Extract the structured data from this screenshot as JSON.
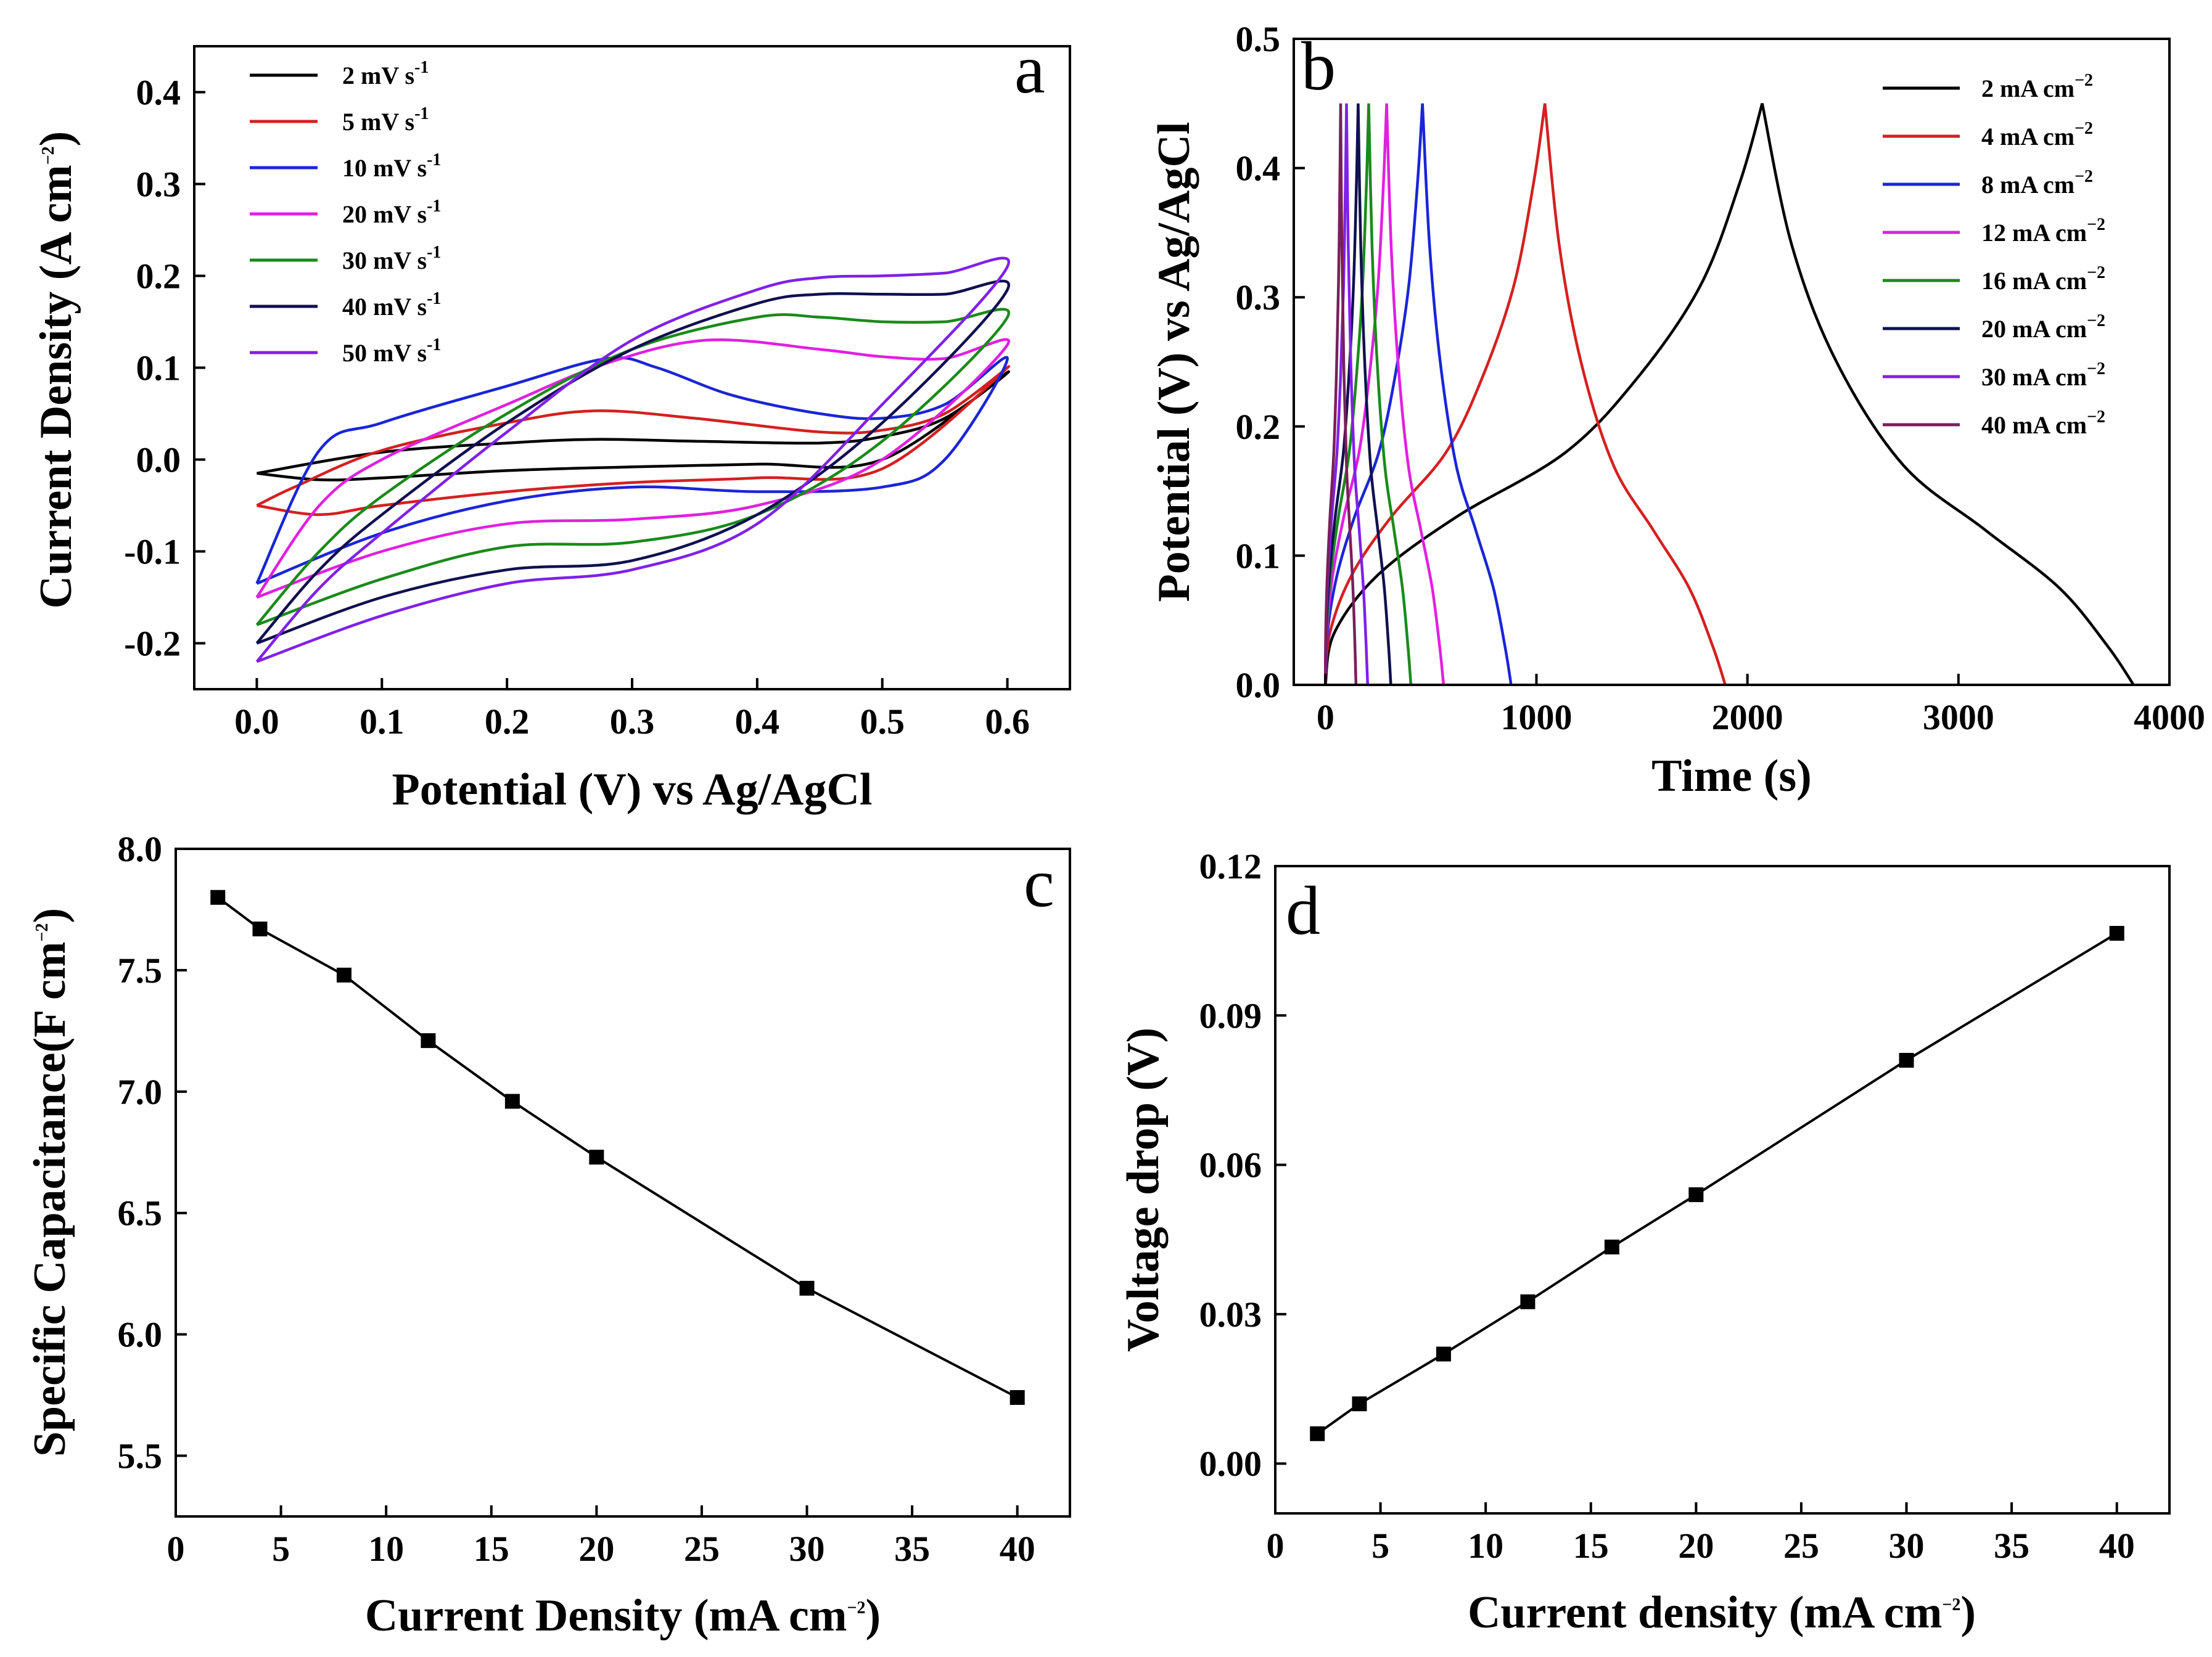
{
  "chart_data": [
    {
      "id": "a",
      "type": "line",
      "panel_label": "a",
      "title": "",
      "xlabel": "Potential (V) vs Ag/AgCl",
      "ylabel": "Current Density (A cm",
      "ylabel_sup": "−2",
      "ylabel_close": ")",
      "xlim": [
        -0.05,
        0.65
      ],
      "ylim": [
        -0.25,
        0.45
      ],
      "xticks": [
        0.0,
        0.1,
        0.2,
        0.3,
        0.4,
        0.5,
        0.6
      ],
      "xtick_labels": [
        "0.0",
        "0.1",
        "0.2",
        "0.3",
        "0.4",
        "0.5",
        "0.6"
      ],
      "yticks": [
        -0.2,
        -0.1,
        0.0,
        0.1,
        0.2,
        0.3,
        0.4
      ],
      "ytick_labels": [
        "-0.2",
        "-0.1",
        "0.0",
        "0.1",
        "0.2",
        "0.3",
        "0.4"
      ],
      "legend_position": "top-left",
      "series": [
        {
          "name": "2",
          "unit": "mV s",
          "sup": "-1",
          "color": "#000000",
          "anodic": [
            [
              0.0,
              -0.015
            ],
            [
              0.1,
              0.008
            ],
            [
              0.2,
              0.018
            ],
            [
              0.27,
              0.022
            ],
            [
              0.35,
              0.02
            ],
            [
              0.45,
              0.018
            ],
            [
              0.5,
              0.025
            ],
            [
              0.55,
              0.045
            ],
            [
              0.6,
              0.095
            ]
          ],
          "cathodic": [
            [
              0.6,
              0.095
            ],
            [
              0.5,
              0.0
            ],
            [
              0.4,
              -0.005
            ],
            [
              0.3,
              -0.008
            ],
            [
              0.2,
              -0.012
            ],
            [
              0.1,
              -0.02
            ],
            [
              0.05,
              -0.022
            ],
            [
              0.0,
              -0.015
            ]
          ]
        },
        {
          "name": "5",
          "unit": "mV s",
          "sup": "-1",
          "color": "#d42020",
          "anodic": [
            [
              0.0,
              -0.05
            ],
            [
              0.03,
              -0.03
            ],
            [
              0.1,
              0.01
            ],
            [
              0.2,
              0.04
            ],
            [
              0.27,
              0.053
            ],
            [
              0.35,
              0.045
            ],
            [
              0.45,
              0.03
            ],
            [
              0.5,
              0.032
            ],
            [
              0.55,
              0.05
            ],
            [
              0.6,
              0.1
            ]
          ],
          "cathodic": [
            [
              0.6,
              0.1
            ],
            [
              0.5,
              -0.01
            ],
            [
              0.4,
              -0.02
            ],
            [
              0.3,
              -0.025
            ],
            [
              0.2,
              -0.035
            ],
            [
              0.1,
              -0.05
            ],
            [
              0.05,
              -0.06
            ],
            [
              0.0,
              -0.05
            ]
          ]
        },
        {
          "name": "10",
          "unit": "mV s",
          "sup": "-1",
          "color": "#1a25d6",
          "anodic": [
            [
              0.0,
              -0.135
            ],
            [
              0.05,
              0.01
            ],
            [
              0.1,
              0.04
            ],
            [
              0.2,
              0.08
            ],
            [
              0.28,
              0.11
            ],
            [
              0.32,
              0.1
            ],
            [
              0.38,
              0.07
            ],
            [
              0.45,
              0.05
            ],
            [
              0.5,
              0.045
            ],
            [
              0.55,
              0.06
            ],
            [
              0.6,
              0.11
            ]
          ],
          "cathodic": [
            [
              0.6,
              0.11
            ],
            [
              0.55,
              0.0
            ],
            [
              0.5,
              -0.03
            ],
            [
              0.4,
              -0.035
            ],
            [
              0.3,
              -0.03
            ],
            [
              0.2,
              -0.045
            ],
            [
              0.1,
              -0.08
            ],
            [
              0.0,
              -0.135
            ]
          ]
        },
        {
          "name": "20",
          "unit": "mV s",
          "sup": "-1",
          "color": "#e020e0",
          "anodic": [
            [
              0.0,
              -0.15
            ],
            [
              0.05,
              -0.05
            ],
            [
              0.1,
              0.0
            ],
            [
              0.2,
              0.06
            ],
            [
              0.28,
              0.105
            ],
            [
              0.36,
              0.13
            ],
            [
              0.45,
              0.12
            ],
            [
              0.5,
              0.112
            ],
            [
              0.55,
              0.11
            ],
            [
              0.6,
              0.125
            ]
          ],
          "cathodic": [
            [
              0.6,
              0.125
            ],
            [
              0.5,
              0.0
            ],
            [
              0.4,
              -0.05
            ],
            [
              0.3,
              -0.065
            ],
            [
              0.2,
              -0.07
            ],
            [
              0.1,
              -0.1
            ],
            [
              0.0,
              -0.15
            ]
          ]
        },
        {
          "name": "30",
          "unit": "mV s",
          "sup": "-1",
          "color": "#1a8a1a",
          "anodic": [
            [
              0.0,
              -0.18
            ],
            [
              0.05,
              -0.1
            ],
            [
              0.1,
              -0.04
            ],
            [
              0.2,
              0.05
            ],
            [
              0.3,
              0.12
            ],
            [
              0.4,
              0.155
            ],
            [
              0.45,
              0.155
            ],
            [
              0.5,
              0.15
            ],
            [
              0.55,
              0.15
            ],
            [
              0.6,
              0.155
            ]
          ],
          "cathodic": [
            [
              0.6,
              0.155
            ],
            [
              0.5,
              0.02
            ],
            [
              0.4,
              -0.06
            ],
            [
              0.3,
              -0.09
            ],
            [
              0.2,
              -0.095
            ],
            [
              0.1,
              -0.13
            ],
            [
              0.0,
              -0.18
            ]
          ]
        },
        {
          "name": "40",
          "unit": "mV s",
          "sup": "-1",
          "color": "#101050",
          "anodic": [
            [
              0.0,
              -0.2
            ],
            [
              0.05,
              -0.12
            ],
            [
              0.1,
              -0.06
            ],
            [
              0.2,
              0.04
            ],
            [
              0.3,
              0.12
            ],
            [
              0.4,
              0.17
            ],
            [
              0.45,
              0.18
            ],
            [
              0.5,
              0.18
            ],
            [
              0.55,
              0.18
            ],
            [
              0.6,
              0.185
            ]
          ],
          "cathodic": [
            [
              0.6,
              0.185
            ],
            [
              0.5,
              0.04
            ],
            [
              0.4,
              -0.06
            ],
            [
              0.3,
              -0.11
            ],
            [
              0.2,
              -0.12
            ],
            [
              0.1,
              -0.15
            ],
            [
              0.0,
              -0.2
            ]
          ]
        },
        {
          "name": "50",
          "unit": "mV s",
          "sup": "-1",
          "color": "#8020e8",
          "anodic": [
            [
              0.0,
              -0.22
            ],
            [
              0.05,
              -0.14
            ],
            [
              0.1,
              -0.08
            ],
            [
              0.2,
              0.03
            ],
            [
              0.3,
              0.13
            ],
            [
              0.4,
              0.185
            ],
            [
              0.45,
              0.198
            ],
            [
              0.5,
              0.2
            ],
            [
              0.55,
              0.203
            ],
            [
              0.6,
              0.21
            ]
          ],
          "cathodic": [
            [
              0.6,
              0.21
            ],
            [
              0.5,
              0.06
            ],
            [
              0.4,
              -0.07
            ],
            [
              0.3,
              -0.12
            ],
            [
              0.2,
              -0.135
            ],
            [
              0.1,
              -0.17
            ],
            [
              0.0,
              -0.22
            ]
          ]
        }
      ]
    },
    {
      "id": "b",
      "type": "line",
      "panel_label": "b",
      "title": "",
      "xlabel": "Time (s)",
      "ylabel": "Potential (V) vs Ag/AgCl",
      "xlim": [
        -150,
        4000
      ],
      "ylim": [
        0.0,
        0.5
      ],
      "xticks": [
        0,
        1000,
        2000,
        3000,
        4000
      ],
      "xtick_labels": [
        "0",
        "1000",
        "2000",
        "3000",
        "4000"
      ],
      "yticks": [
        0.0,
        0.1,
        0.2,
        0.3,
        0.4,
        0.5
      ],
      "ytick_labels": [
        "0.0",
        "0.1",
        "0.2",
        "0.3",
        "0.4",
        "0.5"
      ],
      "legend_position": "top-right",
      "series": [
        {
          "name": "2",
          "unit": "mA cm",
          "sup": "−2",
          "color": "#000000",
          "t_peak": 2070,
          "t_end": 3830
        },
        {
          "name": "4",
          "unit": "mA cm",
          "sup": "−2",
          "color": "#d42020",
          "t_peak": 1040,
          "t_end": 1895
        },
        {
          "name": "8",
          "unit": "mA cm",
          "sup": "−2",
          "color": "#1a25d6",
          "t_peak": 460,
          "t_end": 880
        },
        {
          "name": "12",
          "unit": "mA cm",
          "sup": "−2",
          "color": "#e020e0",
          "t_peak": 290,
          "t_end": 560
        },
        {
          "name": "16",
          "unit": "mA cm",
          "sup": "−2",
          "color": "#1a8a1a",
          "t_peak": 205,
          "t_end": 405
        },
        {
          "name": "20",
          "unit": "mA cm",
          "sup": "−2",
          "color": "#101050",
          "t_peak": 155,
          "t_end": 310
        },
        {
          "name": "30",
          "unit": "mA cm",
          "sup": "−2",
          "color": "#8020e8",
          "t_peak": 100,
          "t_end": 200
        },
        {
          "name": "40",
          "unit": "mA cm",
          "sup": "−2",
          "color": "#7a1f5a",
          "t_peak": 72,
          "t_end": 145
        }
      ]
    },
    {
      "id": "c",
      "type": "line",
      "panel_label": "c",
      "title": "",
      "xlabel": "Current Density (mA cm",
      "xlabel_sup": "−2",
      "xlabel_close": ")",
      "ylabel": "Specific Capacitance(F cm",
      "ylabel_sup": "−2",
      "ylabel_close": ")",
      "xlim": [
        0,
        42.5
      ],
      "ylim": [
        5.25,
        8.0
      ],
      "xticks": [
        0,
        5,
        10,
        15,
        20,
        25,
        30,
        35,
        40
      ],
      "xtick_labels": [
        "0",
        "5",
        "10",
        "15",
        "20",
        "25",
        "30",
        "35",
        "40"
      ],
      "yticks": [
        5.5,
        6.0,
        6.5,
        7.0,
        7.5,
        8.0
      ],
      "ytick_labels": [
        "5.5",
        "6.0",
        "6.5",
        "7.0",
        "7.5",
        "8.0"
      ],
      "series": [
        {
          "name": "Specific Capacitance",
          "color": "#000000",
          "x": [
            2,
            4,
            8,
            12,
            16,
            20,
            30,
            40
          ],
          "y": [
            7.8,
            7.67,
            7.48,
            7.21,
            6.96,
            6.73,
            6.19,
            5.74
          ]
        }
      ]
    },
    {
      "id": "d",
      "type": "line",
      "panel_label": "d",
      "title": "",
      "xlabel": "Current density (mA cm",
      "xlabel_sup": "−2",
      "xlabel_close": ")",
      "ylabel": "Voltage drop (V)",
      "xlim": [
        0,
        42.5
      ],
      "ylim": [
        -0.01,
        0.12
      ],
      "xticks": [
        0,
        5,
        10,
        15,
        20,
        25,
        30,
        35,
        40
      ],
      "xtick_labels": [
        "0",
        "5",
        "10",
        "15",
        "20",
        "25",
        "30",
        "35",
        "40"
      ],
      "yticks": [
        0.0,
        0.03,
        0.06,
        0.09,
        0.12
      ],
      "ytick_labels": [
        "0.00",
        "0.03",
        "0.06",
        "0.09",
        "0.12"
      ],
      "series": [
        {
          "name": "Voltage drop",
          "color": "#000000",
          "x": [
            2,
            4,
            8,
            12,
            16,
            20,
            30,
            40
          ],
          "y": [
            0.006,
            0.012,
            0.022,
            0.0325,
            0.0435,
            0.054,
            0.081,
            0.1065
          ]
        }
      ]
    }
  ]
}
